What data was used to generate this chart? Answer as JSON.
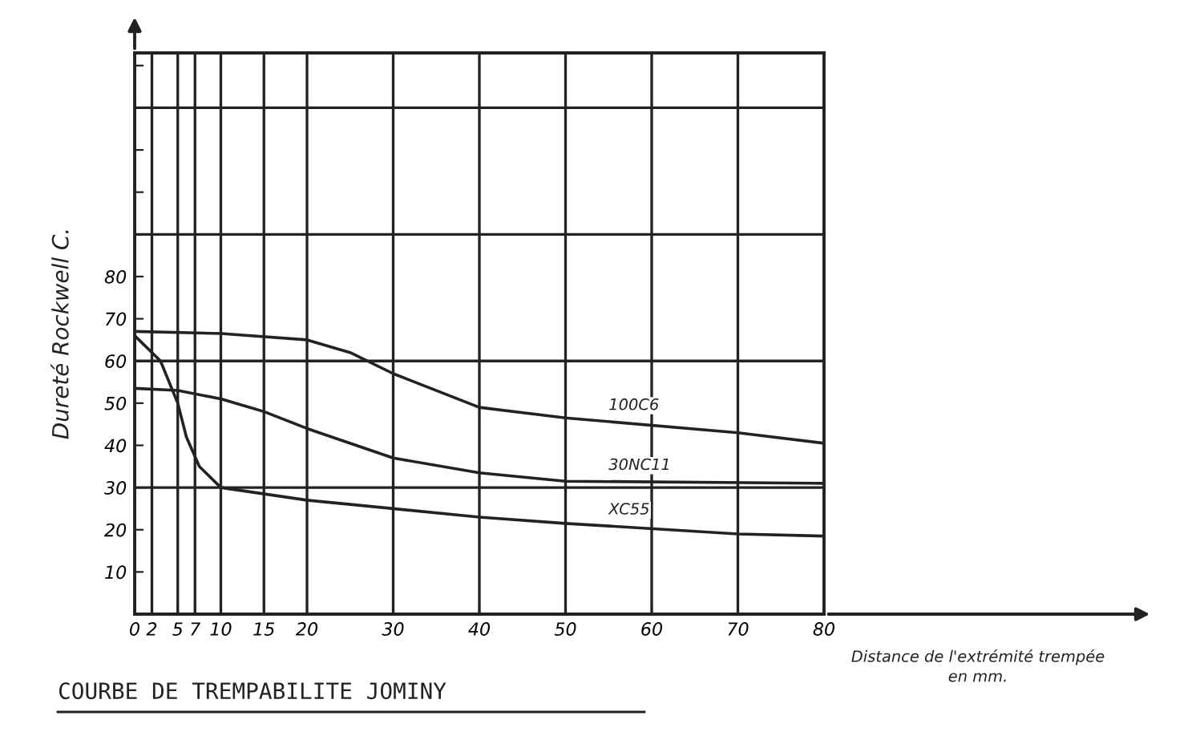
{
  "chart_data": {
    "type": "line",
    "title": "COURBE DE TREMPABILITE JOMINY",
    "xlabel": "Distance de l'extrémité trempée\nen mm.",
    "ylabel": "Dureté Rockwell C.",
    "series": [
      {
        "name": "100C6",
        "color": "#222222",
        "x": [
          0,
          10,
          20,
          25,
          30,
          40,
          50,
          70,
          80
        ],
        "values": [
          67,
          66.5,
          65,
          62,
          57,
          49,
          46.5,
          43,
          40.5
        ]
      },
      {
        "name": "30NC11",
        "color": "#222222",
        "x": [
          0,
          5,
          10,
          15,
          20,
          30,
          40,
          50,
          80
        ],
        "values": [
          53.5,
          53,
          51,
          48,
          44,
          37,
          33.5,
          31.5,
          31
        ]
      },
      {
        "name": "XC55",
        "color": "#222222",
        "x": [
          0,
          3,
          5,
          6,
          7.5,
          10,
          20,
          30,
          40,
          50,
          70,
          80
        ],
        "values": [
          66,
          60,
          50,
          42,
          35,
          30,
          27,
          25,
          23,
          21.5,
          19,
          18.5
        ]
      }
    ],
    "xlim": [
      0,
      80
    ],
    "xticks": [
      0,
      2,
      5,
      7,
      10,
      15,
      20,
      30,
      40,
      50,
      60,
      70,
      80
    ],
    "ylim": [
      0,
      133
    ],
    "yticks": [
      10,
      20,
      30,
      40,
      50,
      60,
      70,
      80,
      {
        "value": 90,
        "label": null
      },
      {
        "value": 100,
        "label": null
      },
      {
        "value": 110,
        "label": null
      },
      {
        "value": 120,
        "label": null
      },
      {
        "value": 130,
        "label": null
      }
    ],
    "grid": "x",
    "ref_lines": [
      {
        "axis": "y",
        "value": 30,
        "label": null
      },
      {
        "axis": "y",
        "value": 60,
        "label": null
      },
      {
        "axis": "y",
        "value": 90,
        "label": null
      },
      {
        "axis": "y",
        "value": 120,
        "label": null
      }
    ],
    "legend": false,
    "marker": "none",
    "line_style": "solid"
  }
}
